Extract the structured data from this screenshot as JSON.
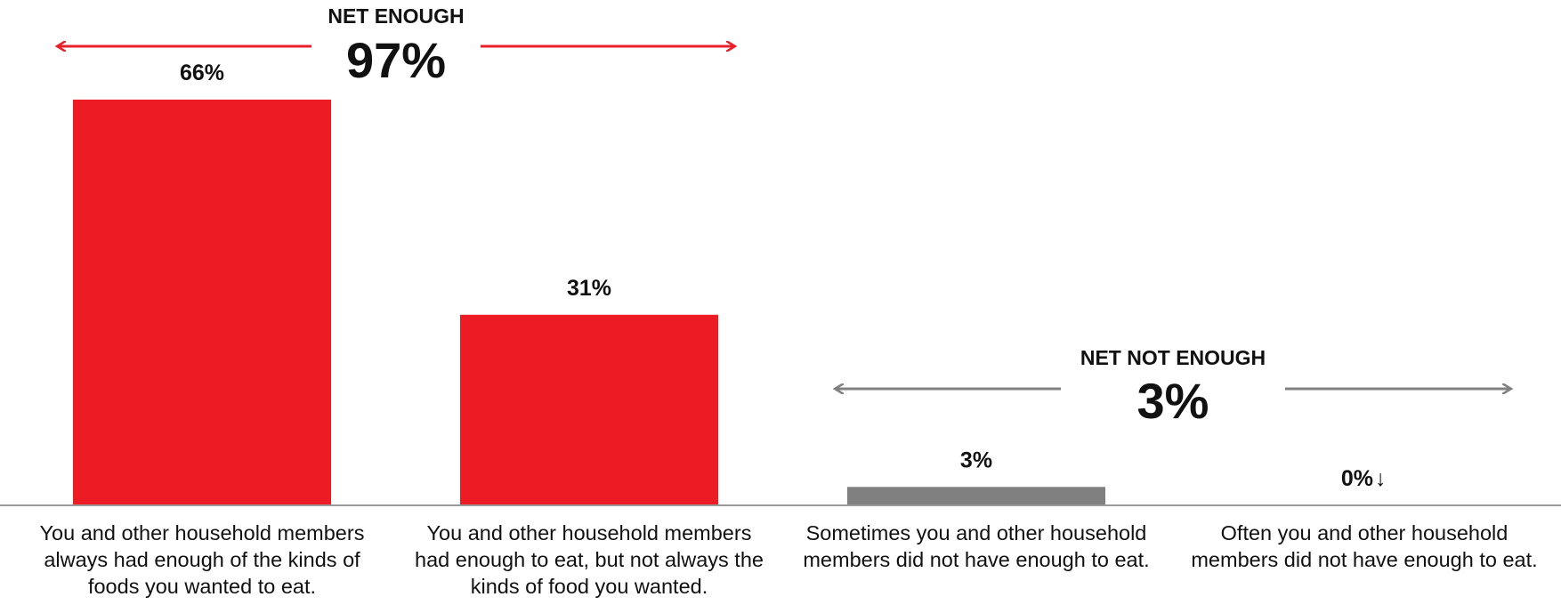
{
  "chart_data": {
    "type": "bar",
    "categories": [
      "You and other household members always had enough of the kinds of foods you wanted to eat.",
      "You and other household members had enough to eat, but not always the kinds of food you wanted.",
      "Sometimes you and other household members did not have enough to eat.",
      "Often you and other household members did not have enough to eat."
    ],
    "values": [
      66,
      31,
      3,
      0
    ],
    "value_labels": [
      "66%",
      "31%",
      "3%",
      "0%"
    ],
    "bar_colors": [
      "#ED1C24",
      "#ED1C24",
      "#808080",
      "#808080"
    ],
    "ylim": [
      0,
      70
    ],
    "grid": false,
    "annotations": {
      "net_enough": {
        "title": "NET ENOUGH",
        "value": "97%",
        "color": "#E8202A"
      },
      "net_not_enough": {
        "title": "NET NOT ENOUGH",
        "value": "3%",
        "color": "#808080"
      },
      "down_arrow": {
        "category_index": 3,
        "glyph": "↓",
        "color": "#ED1C24"
      }
    }
  }
}
